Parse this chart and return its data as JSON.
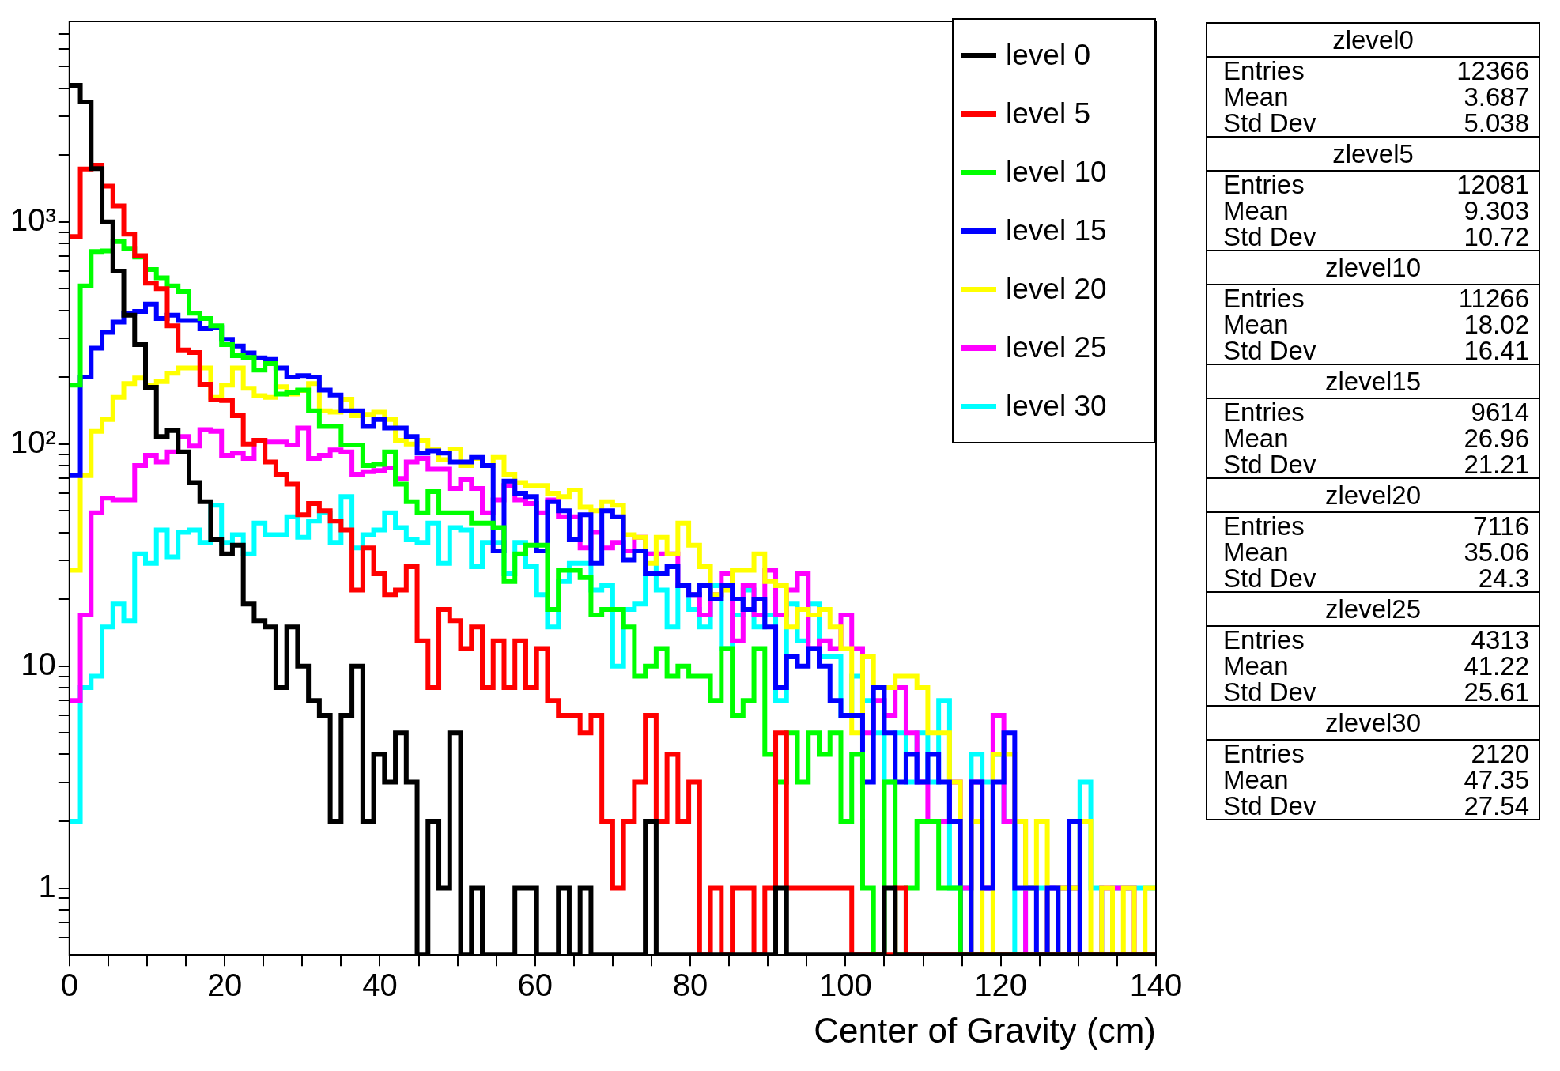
{
  "chart_data": [
    {
      "type": "histogram",
      "xlabel": "Center of Gravity (cm)",
      "log": "y",
      "legend": "top right",
      "bins": [
        0,
        1.4,
        2.8,
        4.2,
        5.6,
        7,
        8.4,
        9.8,
        11.2,
        12.6,
        14,
        15.4,
        16.8,
        18.2,
        19.6,
        21,
        22.4,
        23.8,
        25.2,
        26.6,
        28,
        29.4,
        30.8,
        32.2,
        33.6,
        35,
        36.4,
        37.8,
        39.2,
        40.6,
        42,
        43.4,
        44.8,
        46.2,
        47.6,
        49,
        50.4,
        51.8,
        53.2,
        54.6,
        56,
        57.4,
        58.8,
        60.2,
        61.6,
        63,
        64.4,
        65.8,
        67.2,
        68.6,
        70,
        71.4,
        72.8,
        74.2,
        75.6,
        77,
        78.4,
        79.8,
        81.2,
        82.6,
        84,
        85.4,
        86.8,
        88.2,
        89.6,
        91,
        92.4,
        93.8,
        95.2,
        96.6,
        98,
        99.4,
        100.8,
        102.2,
        103.6,
        105,
        106.4,
        107.8,
        109.2,
        110.6,
        112,
        113.4,
        114.8,
        116.2,
        117.6,
        119,
        120.4,
        121.8,
        123.2,
        124.6,
        126,
        127.4,
        128.8,
        130.2,
        131.6,
        133,
        134.4,
        135.8,
        137.2,
        138.6,
        140
      ],
      "xlim": [
        0,
        140
      ],
      "xticks": [
        0,
        {
          "value": 5,
          "label": null
        },
        {
          "value": 10,
          "label": null
        },
        {
          "value": 15,
          "label": null
        },
        20,
        {
          "value": 25,
          "label": null
        },
        {
          "value": 30,
          "label": null
        },
        {
          "value": 35,
          "label": null
        },
        40,
        {
          "value": 45,
          "label": null
        },
        {
          "value": 50,
          "label": null
        },
        {
          "value": 55,
          "label": null
        },
        60,
        {
          "value": 65,
          "label": null
        },
        {
          "value": 70,
          "label": null
        },
        {
          "value": 75,
          "label": null
        },
        80,
        {
          "value": 85,
          "label": null
        },
        {
          "value": 90,
          "label": null
        },
        {
          "value": 95,
          "label": null
        },
        100,
        {
          "value": 105,
          "label": null
        },
        {
          "value": 110,
          "label": null
        },
        {
          "value": 115,
          "label": null
        },
        120,
        {
          "value": 125,
          "label": null
        },
        {
          "value": 130,
          "label": null
        },
        {
          "value": 135,
          "label": null
        },
        140
      ],
      "ylim": [
        0.5,
        8000
      ],
      "yticks": [
        {
          "value": 0.6,
          "label": null
        },
        {
          "value": 0.7,
          "label": null
        },
        {
          "value": 0.8,
          "label": null
        },
        {
          "value": 0.9,
          "label": null
        },
        1,
        {
          "value": 2,
          "label": null
        },
        {
          "value": 3,
          "label": null
        },
        {
          "value": 4,
          "label": null
        },
        {
          "value": 5,
          "label": null
        },
        {
          "value": 6,
          "label": null
        },
        {
          "value": 7,
          "label": null
        },
        {
          "value": 8,
          "label": null
        },
        {
          "value": 9,
          "label": null
        },
        10,
        {
          "value": 20,
          "label": null
        },
        {
          "value": 30,
          "label": null
        },
        {
          "value": 40,
          "label": null
        },
        {
          "value": 50,
          "label": null
        },
        {
          "value": 60,
          "label": null
        },
        {
          "value": 70,
          "label": null
        },
        {
          "value": 80,
          "label": null
        },
        {
          "value": 90,
          "label": null
        },
        {
          "value": 100,
          "label": "10²"
        },
        {
          "value": 200,
          "label": null
        },
        {
          "value": 300,
          "label": null
        },
        {
          "value": 400,
          "label": null
        },
        {
          "value": 500,
          "label": null
        },
        {
          "value": 600,
          "label": null
        },
        {
          "value": 700,
          "label": null
        },
        {
          "value": 800,
          "label": null
        },
        {
          "value": 900,
          "label": null
        },
        {
          "value": 1000,
          "label": "10³"
        },
        {
          "value": 2000,
          "label": null
        },
        {
          "value": 3000,
          "label": null
        },
        {
          "value": 4000,
          "label": null
        },
        {
          "value": 5000,
          "label": null
        },
        {
          "value": 6000,
          "label": null
        },
        {
          "value": 7000,
          "label": null
        }
      ],
      "series": [
        {
          "name": "level 0",
          "color": "#000000",
          "values": [
            4120,
            3470,
            1740,
            1000,
            600,
            380,
            280,
            180,
            108,
            115,
            92,
            67,
            55,
            37,
            32,
            35,
            19,
            16,
            15,
            8,
            15,
            10,
            7,
            6,
            2,
            6,
            10,
            2,
            4,
            3,
            5,
            3,
            null,
            2,
            1,
            5,
            null,
            1,
            null,
            null,
            null,
            1,
            1,
            null,
            null,
            1,
            null,
            1,
            null,
            null,
            null,
            null,
            null,
            2,
            null,
            null,
            null,
            null,
            null,
            null,
            null,
            null,
            null,
            null,
            null,
            1,
            null,
            null,
            null,
            null,
            null,
            null,
            null,
            null,
            null,
            1,
            null,
            null,
            null,
            null,
            null,
            null,
            null,
            null,
            null,
            null,
            null,
            null,
            null,
            null,
            null,
            null,
            null,
            null,
            null,
            null,
            null,
            null,
            null,
            null
          ]
        },
        {
          "name": "level 5",
          "color": "#ff0000",
          "values": [
            860,
            1730,
            1800,
            1450,
            1180,
            880,
            705,
            530,
            500,
            340,
            265,
            258,
            186,
            158,
            157,
            134,
            100,
            104,
            83,
            73,
            66,
            48,
            54,
            50,
            45,
            41,
            22,
            34,
            26,
            21,
            22,
            28,
            13,
            8,
            18,
            16,
            12,
            15,
            8,
            13,
            8,
            13,
            8,
            12,
            7,
            6,
            6,
            5,
            6,
            2,
            1,
            2,
            3,
            6,
            2,
            4,
            2,
            3,
            null,
            1,
            null,
            1,
            1,
            null,
            1,
            5,
            1,
            1,
            1,
            1,
            1,
            1,
            null,
            null,
            null,
            null,
            1,
            null,
            null,
            null,
            null,
            null,
            null,
            null,
            null,
            null,
            null,
            null,
            null,
            null,
            null,
            null,
            null,
            null,
            null,
            null,
            null,
            null,
            null,
            null
          ]
        },
        {
          "name": "level 10",
          "color": "#00ff00",
          "values": [
            184,
            515,
            735,
            740,
            815,
            760,
            695,
            610,
            560,
            515,
            485,
            388,
            367,
            340,
            280,
            250,
            245,
            215,
            230,
            168,
            170,
            175,
            141,
            120,
            120,
            99,
            99,
            80,
            81,
            92,
            66,
            55,
            49,
            61,
            49,
            49,
            49,
            44,
            44,
            42,
            24,
            32,
            35,
            35,
            18,
            27,
            27,
            25,
            17,
            18,
            18,
            15,
            9,
            10,
            12,
            9,
            10,
            9,
            9,
            7,
            12,
            6,
            7,
            12,
            4,
            3,
            5,
            3,
            5,
            4,
            5,
            2,
            4,
            1,
            null,
            3,
            null,
            1,
            2,
            2,
            1,
            1,
            null,
            null,
            null,
            null,
            null,
            null,
            null,
            null,
            null,
            null,
            null,
            null,
            null,
            null,
            null,
            null,
            null,
            null
          ]
        },
        {
          "name": "level 15",
          "color": "#0000ff",
          "values": [
            72,
            200,
            270,
            318,
            354,
            387,
            395,
            426,
            367,
            380,
            360,
            360,
            330,
            335,
            296,
            276,
            257,
            244,
            240,
            220,
            200,
            203,
            200,
            175,
            166,
            141,
            141,
            120,
            129,
            118,
            118,
            108,
            91,
            93,
            91,
            83,
            83,
            87,
            80,
            33,
            68,
            60,
            58,
            33,
            55,
            50,
            37,
            48,
            29,
            50,
            47,
            30,
            33,
            26,
            26,
            28,
            23,
            21,
            23,
            20,
            23,
            20,
            18,
            20,
            15,
            8,
            11,
            10,
            12,
            10,
            7,
            6,
            6,
            3,
            8,
            5,
            3,
            4,
            3,
            4,
            3,
            2,
            null,
            3,
            1,
            3,
            5,
            1,
            1,
            null,
            1,
            null,
            2,
            null,
            null,
            null,
            null,
            null,
            null,
            null
          ]
        },
        {
          "name": "level 20",
          "color": "#ffff00",
          "values": [
            27,
            72,
            114,
            129,
            162,
            187,
            198,
            184,
            191,
            208,
            220,
            220,
            220,
            162,
            184,
            220,
            178,
            165,
            162,
            181,
            168,
            174,
            187,
            141,
            139,
            159,
            134,
            136,
            139,
            129,
            104,
            100,
            104,
            95,
            85,
            95,
            80,
            86,
            80,
            87,
            73,
            67,
            65,
            65,
            60,
            58,
            62,
            52,
            50,
            55,
            53,
            39,
            38,
            29,
            38,
            32,
            44,
            35,
            28,
            21,
            22,
            27,
            27,
            32,
            24,
            23,
            15,
            18,
            17,
            18,
            15,
            12,
            5,
            11,
            8,
            8,
            9,
            9,
            8,
            5,
            5,
            3,
            null,
            2,
            null,
            4,
            4,
            2,
            1,
            2,
            null,
            1,
            1,
            2,
            null,
            1,
            null,
            1,
            null,
            1
          ]
        },
        {
          "name": "level 25",
          "color": "#ff00ff",
          "values": [
            7,
            17,
            49,
            57,
            56,
            56,
            80,
            89,
            83,
            92,
            108,
            98,
            116,
            114,
            89,
            91,
            86,
            104,
            102,
            102,
            99,
            118,
            86,
            89,
            94,
            92,
            73,
            75,
            76,
            78,
            70,
            83,
            86,
            77,
            77,
            63,
            69,
            63,
            49,
            56,
            65,
            56,
            54,
            49,
            56,
            47,
            47,
            34,
            40,
            34,
            36,
            33,
            38,
            32,
            32,
            32,
            23,
            21,
            17,
            21,
            26,
            13,
            23,
            17,
            27,
            17,
            22,
            26,
            12,
            13,
            12,
            17,
            12,
            5,
            7,
            6,
            8,
            5,
            3,
            2,
            2,
            3,
            1,
            3,
            1,
            6,
            2,
            2,
            null,
            null,
            1,
            1,
            1,
            null,
            null,
            1,
            1,
            1,
            null,
            null
          ]
        },
        {
          "name": "level 30",
          "color": "#00ffff",
          "values": [
            2,
            8,
            9,
            15,
            19,
            16,
            32,
            29,
            41,
            31,
            40,
            41,
            36,
            53,
            36,
            39,
            32,
            44,
            39,
            39,
            47,
            38,
            45,
            49,
            36,
            58,
            34,
            39,
            41,
            49,
            42,
            37,
            36,
            44,
            29,
            42,
            41,
            28,
            36,
            36,
            26,
            36,
            28,
            21,
            15,
            24,
            29,
            29,
            22,
            23,
            10,
            18,
            19,
            32,
            22,
            15,
            23,
            18,
            15,
            23,
            12,
            17,
            22,
            15,
            17,
            7,
            19,
            13,
            19,
            11,
            11,
            6,
            9,
            7,
            5,
            3,
            5,
            3,
            5,
            3,
            7,
            1,
            1,
            4,
            3,
            4,
            2,
            null,
            1,
            1,
            1,
            1,
            1,
            3,
            1,
            null,
            1,
            1,
            1,
            1
          ]
        }
      ]
    },
    {
      "type": "other",
      "annotations": [
        "zlevel0",
        "Entries",
        "12366",
        "Mean",
        "3.687",
        "Std Dev",
        "5.038",
        "zlevel5",
        "Entries",
        "12081",
        "Mean",
        "9.303",
        "Std Dev",
        "10.72",
        "zlevel10",
        "Entries",
        "11266",
        "Mean",
        "18.02",
        "Std Dev",
        "16.41",
        "zlevel15",
        "Entries",
        "9614",
        "Mean",
        "26.96",
        "Std Dev",
        "21.21",
        "zlevel20",
        "Entries",
        "7116",
        "Mean",
        "35.06",
        "Std Dev",
        "24.3",
        "zlevel25",
        "Entries",
        "4313",
        "Mean",
        "41.22",
        "Std Dev",
        "25.61",
        "zlevel30",
        "Entries",
        "2120",
        "Mean",
        "47.35",
        "Std Dev",
        "27.54"
      ]
    }
  ]
}
